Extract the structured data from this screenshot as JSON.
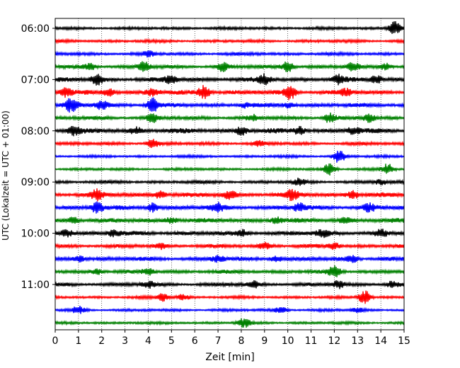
{
  "chart_data": {
    "type": "line",
    "title": "",
    "xlabel": "Zeit  [min]",
    "ylabel": "UTC (Lokalzeit = UTC + 01:00)",
    "xlim": [
      0,
      15
    ],
    "x_ticks": [
      "0",
      "1",
      "2",
      "3",
      "4",
      "5",
      "6",
      "7",
      "8",
      "9",
      "10",
      "11",
      "12",
      "13",
      "14",
      "15"
    ],
    "y_ticks": [
      {
        "label": "06:00",
        "row": 0
      },
      {
        "label": "07:00",
        "row": 4
      },
      {
        "label": "08:00",
        "row": 8
      },
      {
        "label": "09:00",
        "row": 12
      },
      {
        "label": "10:00",
        "row": 16
      },
      {
        "label": "11:00",
        "row": 20
      }
    ],
    "grid": "vertical-dotted",
    "minutes_per_trace": 15,
    "trace_colors": [
      "#000000",
      "#ff0000",
      "#0000ff",
      "#008000"
    ],
    "traces": [
      {
        "start": "06:00",
        "base": 2.0,
        "events": [
          {
            "t": 14.6,
            "a": 9
          }
        ]
      },
      {
        "start": "06:15",
        "base": 2.0,
        "events": []
      },
      {
        "start": "06:30",
        "base": 2.2,
        "events": [
          {
            "t": 4.0,
            "a": 3
          }
        ]
      },
      {
        "start": "06:45",
        "base": 2.5,
        "events": [
          {
            "t": 1.5,
            "a": 4
          },
          {
            "t": 3.8,
            "a": 7
          },
          {
            "t": 7.2,
            "a": 6
          },
          {
            "t": 10.0,
            "a": 7
          },
          {
            "t": 12.8,
            "a": 6
          },
          {
            "t": 14.2,
            "a": 5
          }
        ]
      },
      {
        "start": "07:00",
        "base": 3.0,
        "events": [
          {
            "t": 1.8,
            "a": 7
          },
          {
            "t": 5.0,
            "a": 5
          },
          {
            "t": 9.0,
            "a": 6
          },
          {
            "t": 12.2,
            "a": 6
          },
          {
            "t": 13.8,
            "a": 5
          }
        ]
      },
      {
        "start": "07:15",
        "base": 3.0,
        "events": [
          {
            "t": 0.5,
            "a": 6
          },
          {
            "t": 2.3,
            "a": 5
          },
          {
            "t": 4.2,
            "a": 5
          },
          {
            "t": 6.4,
            "a": 9
          },
          {
            "t": 10.1,
            "a": 9
          },
          {
            "t": 12.5,
            "a": 4
          }
        ]
      },
      {
        "start": "07:30",
        "base": 2.8,
        "events": [
          {
            "t": 0.7,
            "a": 9
          },
          {
            "t": 2.0,
            "a": 6
          },
          {
            "t": 4.2,
            "a": 9
          },
          {
            "t": 8.2,
            "a": 3
          },
          {
            "t": 10.0,
            "a": 3
          }
        ]
      },
      {
        "start": "07:45",
        "base": 2.5,
        "events": [
          {
            "t": 4.2,
            "a": 6
          },
          {
            "t": 8.5,
            "a": 4
          },
          {
            "t": 11.8,
            "a": 7
          },
          {
            "t": 13.5,
            "a": 5
          }
        ]
      },
      {
        "start": "08:00",
        "base": 3.2,
        "events": [
          {
            "t": 0.8,
            "a": 5
          },
          {
            "t": 3.5,
            "a": 4
          },
          {
            "t": 8.0,
            "a": 5
          },
          {
            "t": 10.5,
            "a": 5
          },
          {
            "t": 12.8,
            "a": 5
          }
        ]
      },
      {
        "start": "08:15",
        "base": 2.2,
        "events": [
          {
            "t": 4.2,
            "a": 6
          },
          {
            "t": 8.8,
            "a": 3
          }
        ]
      },
      {
        "start": "08:30",
        "base": 1.8,
        "events": [
          {
            "t": 12.2,
            "a": 9
          }
        ]
      },
      {
        "start": "08:45",
        "base": 1.8,
        "events": [
          {
            "t": 11.8,
            "a": 8
          },
          {
            "t": 14.3,
            "a": 7
          }
        ]
      },
      {
        "start": "09:00",
        "base": 2.2,
        "events": [
          {
            "t": 10.5,
            "a": 4
          },
          {
            "t": 14.0,
            "a": 3
          }
        ]
      },
      {
        "start": "09:15",
        "base": 3.0,
        "events": [
          {
            "t": 1.8,
            "a": 6
          },
          {
            "t": 4.5,
            "a": 5
          },
          {
            "t": 7.5,
            "a": 5
          },
          {
            "t": 10.2,
            "a": 6
          },
          {
            "t": 12.8,
            "a": 5
          }
        ]
      },
      {
        "start": "09:30",
        "base": 3.0,
        "events": [
          {
            "t": 1.8,
            "a": 7
          },
          {
            "t": 4.2,
            "a": 6
          },
          {
            "t": 7.0,
            "a": 5
          },
          {
            "t": 10.5,
            "a": 5
          },
          {
            "t": 13.5,
            "a": 5
          }
        ]
      },
      {
        "start": "09:45",
        "base": 3.0,
        "events": [
          {
            "t": 0.8,
            "a": 4
          },
          {
            "t": 5.0,
            "a": 4
          },
          {
            "t": 9.5,
            "a": 4
          },
          {
            "t": 12.5,
            "a": 4
          }
        ]
      },
      {
        "start": "10:00",
        "base": 3.0,
        "events": [
          {
            "t": 0.5,
            "a": 5
          },
          {
            "t": 2.5,
            "a": 4
          },
          {
            "t": 8.0,
            "a": 4
          },
          {
            "t": 11.5,
            "a": 4
          },
          {
            "t": 14.0,
            "a": 4
          }
        ]
      },
      {
        "start": "10:15",
        "base": 2.5,
        "events": [
          {
            "t": 4.5,
            "a": 4
          },
          {
            "t": 9.0,
            "a": 4
          },
          {
            "t": 12.0,
            "a": 4
          }
        ]
      },
      {
        "start": "10:30",
        "base": 2.8,
        "events": [
          {
            "t": 1.0,
            "a": 4
          },
          {
            "t": 7.0,
            "a": 4
          },
          {
            "t": 9.5,
            "a": 4
          },
          {
            "t": 12.8,
            "a": 4
          }
        ]
      },
      {
        "start": "10:45",
        "base": 2.5,
        "events": [
          {
            "t": 1.8,
            "a": 4
          },
          {
            "t": 4.0,
            "a": 4
          },
          {
            "t": 12.0,
            "a": 7
          }
        ]
      },
      {
        "start": "11:00",
        "base": 2.5,
        "events": [
          {
            "t": 4.0,
            "a": 4
          },
          {
            "t": 8.5,
            "a": 4
          },
          {
            "t": 12.2,
            "a": 5
          },
          {
            "t": 14.5,
            "a": 4
          }
        ]
      },
      {
        "start": "11:15",
        "base": 1.8,
        "events": [
          {
            "t": 4.6,
            "a": 5
          },
          {
            "t": 5.5,
            "a": 4
          },
          {
            "t": 13.3,
            "a": 10
          }
        ]
      },
      {
        "start": "11:30",
        "base": 1.8,
        "events": [
          {
            "t": 1.0,
            "a": 5
          },
          {
            "t": 9.7,
            "a": 4
          },
          {
            "t": 13.0,
            "a": 3
          }
        ]
      },
      {
        "start": "11:45",
        "base": 1.8,
        "events": [
          {
            "t": 8.1,
            "a": 6
          }
        ]
      }
    ]
  }
}
